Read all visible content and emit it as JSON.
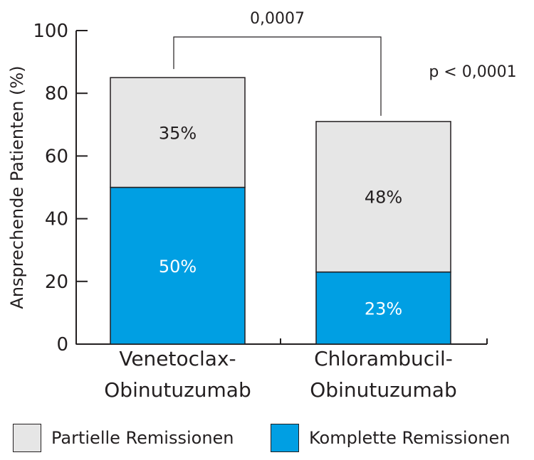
{
  "chart_data": {
    "type": "bar",
    "stacked": true,
    "categories": [
      [
        "Venetoclax-",
        "Obinutuzumab"
      ],
      [
        "Chlorambucil-",
        "Obinutuzumab"
      ]
    ],
    "series": [
      {
        "name": "Komplette Remissionen",
        "values": [
          50,
          23
        ],
        "labels": [
          "50%",
          "23%"
        ],
        "color": "#009fe3"
      },
      {
        "name": "Partielle Remissionen",
        "values": [
          35,
          48
        ],
        "labels": [
          "35%",
          "48%"
        ],
        "color": "#e6e6e6"
      }
    ],
    "ylabel": "Ansprechende Patienten (%)",
    "xlabel": "",
    "ylim": [
      0,
      100
    ],
    "yticks": [
      0,
      20,
      40,
      60,
      80,
      100
    ],
    "grid": false,
    "annotations": {
      "bracket_label": "0,0007",
      "p_value": "p < 0,0001"
    }
  },
  "legend": [
    {
      "label": "Partielle Remissionen",
      "color": "#e6e6e6"
    },
    {
      "label": "Komplette Remissionen",
      "color": "#009fe3"
    }
  ]
}
